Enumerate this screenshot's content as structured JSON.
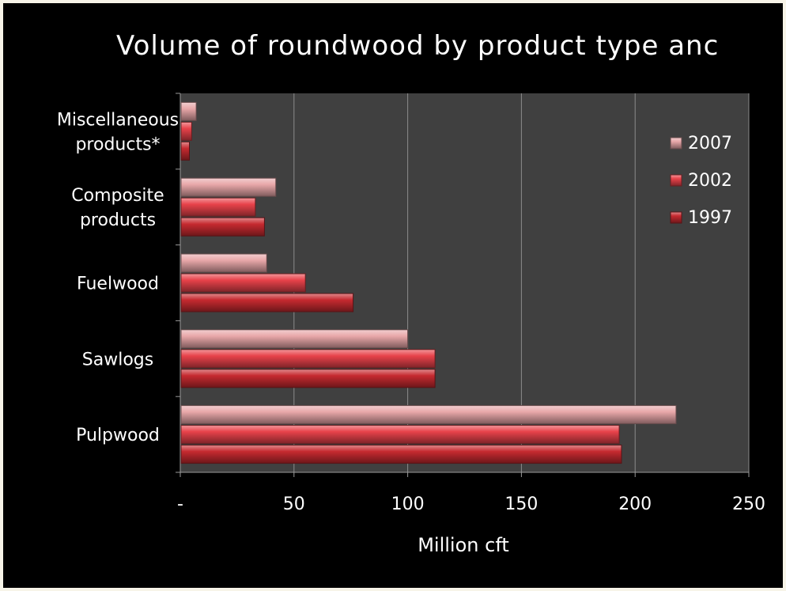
{
  "chart_data": {
    "type": "bar",
    "orientation": "horizontal",
    "title": "Volume of roundwood by product type anc",
    "xlabel": "Million cft",
    "ylabel": "",
    "categories": [
      "Miscellaneous products*",
      "Composite products",
      "Fuelwood",
      "Sawlogs",
      "Pulpwood"
    ],
    "category_lines": [
      [
        "Miscellaneous",
        "products*"
      ],
      [
        "Composite",
        "products"
      ],
      [
        "Fuelwood"
      ],
      [
        "Sawlogs"
      ],
      [
        "Pulpwood"
      ]
    ],
    "series": [
      {
        "name": "2007",
        "color": "#e8a7a9",
        "values": [
          7,
          42,
          38,
          100,
          218
        ]
      },
      {
        "name": "2002",
        "color": "#e8424a",
        "values": [
          5,
          33,
          55,
          112,
          193
        ]
      },
      {
        "name": "1997",
        "color": "#c62a30",
        "values": [
          4,
          37,
          76,
          112,
          194
        ]
      }
    ],
    "xlim": [
      0,
      250
    ],
    "xticks": [
      0,
      50,
      100,
      150,
      200,
      250
    ],
    "xtick_labels": [
      "-",
      "50",
      "100",
      "150",
      "200",
      "250"
    ],
    "grid": true,
    "legend_position": "right",
    "plot_background": "#404040",
    "background": "#000000"
  }
}
